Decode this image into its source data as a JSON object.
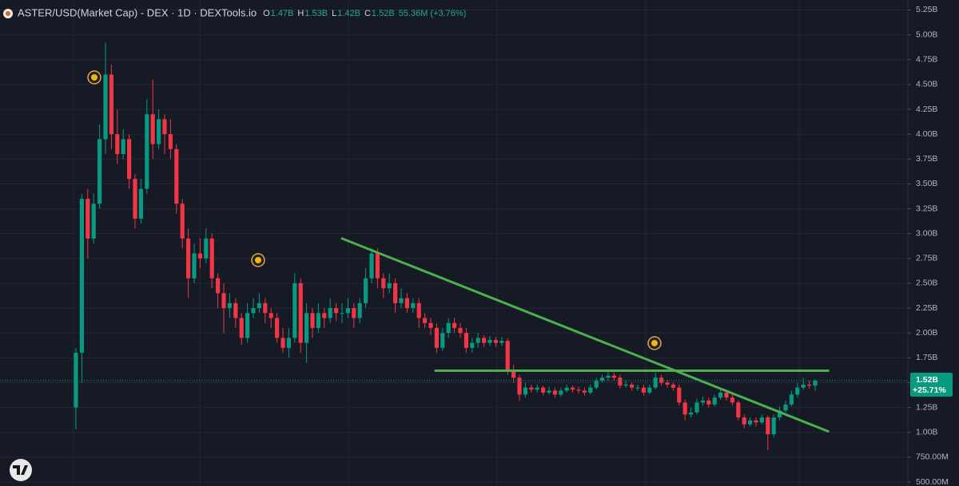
{
  "header": {
    "title": "ASTER/USD(Market Cap) - DEX · 1D · DEXTools.io",
    "ohlc": [
      {
        "label": "O",
        "value": "1.47B"
      },
      {
        "label": "H",
        "value": "1.53B"
      },
      {
        "label": "L",
        "value": "1.42B"
      },
      {
        "label": "C",
        "value": "1.52B"
      }
    ],
    "change": "55.36M (+3.76%)"
  },
  "price_label": {
    "price": "1.52B",
    "change": "+25.71%"
  },
  "chart_data": {
    "type": "candlestick",
    "up_color": "#089981",
    "down_color": "#f23645",
    "trendline_color": "#4caf50",
    "ylim": [
      0.46,
      5.35
    ],
    "yticks": [
      {
        "value": 5.25,
        "label": "5.25B"
      },
      {
        "value": 5.0,
        "label": "5.00B"
      },
      {
        "value": 4.75,
        "label": "4.75B"
      },
      {
        "value": 4.5,
        "label": "4.50B"
      },
      {
        "value": 4.25,
        "label": "4.25B"
      },
      {
        "value": 4.0,
        "label": "4.00B"
      },
      {
        "value": 3.75,
        "label": "3.75B"
      },
      {
        "value": 3.5,
        "label": "3.50B"
      },
      {
        "value": 3.25,
        "label": "3.25B"
      },
      {
        "value": 3.0,
        "label": "3.00B"
      },
      {
        "value": 2.75,
        "label": "2.75B"
      },
      {
        "value": 2.5,
        "label": "2.50B"
      },
      {
        "value": 2.25,
        "label": "2.25B"
      },
      {
        "value": 2.0,
        "label": "2.00B"
      },
      {
        "value": 1.75,
        "label": "1.75B"
      },
      {
        "value": 1.5,
        "label": "1.50B"
      },
      {
        "value": 1.25,
        "label": "1.25B"
      },
      {
        "value": 1.0,
        "label": "1.00B"
      },
      {
        "value": 0.75,
        "label": "750.00M"
      },
      {
        "value": 0.5,
        "label": "500.00M"
      }
    ],
    "grid": true,
    "open": [
      1.25,
      1.8,
      3.35,
      2.95,
      3.3,
      3.95,
      4.6,
      4.0,
      3.8,
      3.95,
      3.55,
      3.15,
      3.45,
      4.2,
      3.9,
      4.15,
      4.0,
      3.85,
      3.3,
      2.95,
      2.55,
      2.8,
      2.75,
      2.95,
      2.55,
      2.4,
      2.25,
      2.3,
      2.15,
      1.95,
      2.2,
      2.25,
      2.3,
      2.2,
      2.15,
      1.95,
      1.85,
      1.95,
      2.5,
      1.9,
      2.2,
      2.05,
      2.2,
      2.15,
      2.25,
      2.2,
      2.2,
      2.25,
      2.15,
      2.3,
      2.55,
      2.8,
      2.55,
      2.45,
      2.5,
      2.3,
      2.35,
      2.25,
      2.3,
      2.15,
      2.1,
      2.05,
      1.85,
      2.0,
      2.1,
      2.05,
      2.0,
      1.85,
      1.9,
      1.95,
      1.9,
      1.93,
      1.9,
      1.92,
      1.62,
      1.55,
      1.38,
      1.45,
      1.43,
      1.45,
      1.4,
      1.42,
      1.38,
      1.42,
      1.45,
      1.43,
      1.42,
      1.4,
      1.45,
      1.52,
      1.55,
      1.57,
      1.55,
      1.47,
      1.48,
      1.45,
      1.45,
      1.4,
      1.45,
      1.55,
      1.5,
      1.48,
      1.45,
      1.3,
      1.18,
      1.2,
      1.3,
      1.32,
      1.28,
      1.35,
      1.4,
      1.35,
      1.3,
      1.15,
      1.08,
      1.12,
      1.1,
      1.15,
      0.98,
      1.15,
      1.22,
      1.28,
      1.38,
      1.45,
      1.48,
      1.47
    ],
    "high": [
      1.85,
      3.4,
      3.45,
      3.4,
      4.1,
      4.92,
      4.7,
      4.25,
      4.05,
      4.0,
      3.6,
      3.55,
      4.35,
      4.55,
      4.25,
      4.2,
      4.15,
      3.9,
      3.35,
      3.05,
      2.9,
      2.95,
      3.05,
      3.0,
      2.6,
      2.5,
      2.4,
      2.35,
      2.2,
      2.3,
      2.35,
      2.4,
      2.35,
      2.25,
      2.2,
      2.05,
      2.05,
      2.6,
      2.55,
      2.3,
      2.25,
      2.3,
      2.25,
      2.35,
      2.3,
      2.3,
      2.35,
      2.3,
      2.35,
      2.65,
      2.85,
      2.85,
      2.6,
      2.6,
      2.55,
      2.45,
      2.4,
      2.35,
      2.35,
      2.2,
      2.15,
      2.1,
      2.05,
      2.15,
      2.15,
      2.1,
      2.05,
      1.95,
      2.0,
      1.98,
      1.97,
      1.96,
      1.96,
      1.95,
      1.68,
      1.58,
      1.5,
      1.48,
      1.48,
      1.47,
      1.46,
      1.45,
      1.45,
      1.48,
      1.47,
      1.46,
      1.45,
      1.48,
      1.55,
      1.58,
      1.61,
      1.6,
      1.58,
      1.52,
      1.5,
      1.48,
      1.48,
      1.48,
      1.6,
      1.58,
      1.53,
      1.5,
      1.48,
      1.33,
      1.25,
      1.34,
      1.36,
      1.35,
      1.38,
      1.43,
      1.42,
      1.38,
      1.32,
      1.18,
      1.15,
      1.15,
      1.18,
      1.17,
      1.18,
      1.26,
      1.32,
      1.42,
      1.5,
      1.55,
      1.52,
      1.53
    ],
    "low": [
      1.03,
      1.5,
      2.75,
      2.9,
      3.25,
      3.8,
      3.85,
      3.7,
      3.75,
      3.45,
      3.05,
      3.1,
      3.4,
      3.75,
      3.85,
      3.8,
      3.75,
      3.2,
      2.85,
      2.35,
      2.5,
      2.65,
      2.7,
      2.45,
      2.25,
      2.0,
      2.15,
      2.05,
      1.88,
      1.9,
      2.15,
      2.2,
      2.1,
      2.05,
      1.9,
      1.8,
      1.75,
      1.9,
      1.8,
      1.7,
      1.95,
      2.0,
      2.05,
      2.1,
      2.12,
      2.1,
      2.15,
      2.05,
      2.1,
      2.25,
      2.5,
      2.45,
      2.35,
      2.4,
      2.2,
      2.25,
      2.2,
      2.2,
      2.05,
      2.05,
      1.98,
      1.8,
      1.82,
      1.95,
      2.0,
      1.95,
      1.8,
      1.8,
      1.85,
      1.86,
      1.87,
      1.86,
      1.87,
      1.58,
      1.5,
      1.32,
      1.35,
      1.4,
      1.4,
      1.37,
      1.38,
      1.35,
      1.36,
      1.4,
      1.4,
      1.39,
      1.37,
      1.38,
      1.43,
      1.5,
      1.52,
      1.52,
      1.44,
      1.45,
      1.42,
      1.42,
      1.37,
      1.38,
      1.43,
      1.47,
      1.45,
      1.42,
      1.27,
      1.12,
      1.15,
      1.18,
      1.27,
      1.25,
      1.26,
      1.33,
      1.32,
      1.27,
      1.12,
      1.04,
      1.06,
      1.06,
      1.08,
      0.82,
      0.95,
      1.12,
      1.2,
      1.26,
      1.35,
      1.43,
      1.44,
      1.42
    ],
    "close": [
      1.8,
      3.35,
      2.95,
      3.3,
      3.95,
      4.6,
      4.0,
      3.8,
      3.95,
      3.55,
      3.15,
      3.45,
      4.2,
      3.9,
      4.15,
      4.0,
      3.85,
      3.3,
      2.95,
      2.55,
      2.8,
      2.75,
      2.95,
      2.55,
      2.4,
      2.25,
      2.3,
      2.15,
      1.95,
      2.2,
      2.25,
      2.3,
      2.2,
      2.15,
      1.95,
      1.85,
      1.95,
      2.5,
      1.9,
      2.2,
      2.05,
      2.2,
      2.15,
      2.25,
      2.2,
      2.2,
      2.25,
      2.15,
      2.3,
      2.55,
      2.8,
      2.55,
      2.45,
      2.5,
      2.3,
      2.35,
      2.25,
      2.3,
      2.15,
      2.1,
      2.05,
      1.85,
      2.0,
      2.1,
      2.05,
      2.0,
      1.85,
      1.9,
      1.95,
      1.9,
      1.93,
      1.9,
      1.92,
      1.62,
      1.55,
      1.38,
      1.45,
      1.43,
      1.45,
      1.4,
      1.42,
      1.38,
      1.42,
      1.45,
      1.43,
      1.42,
      1.4,
      1.45,
      1.52,
      1.55,
      1.57,
      1.55,
      1.47,
      1.48,
      1.45,
      1.45,
      1.4,
      1.45,
      1.55,
      1.5,
      1.48,
      1.45,
      1.3,
      1.18,
      1.2,
      1.3,
      1.32,
      1.28,
      1.35,
      1.4,
      1.35,
      1.3,
      1.15,
      1.08,
      1.12,
      1.1,
      1.15,
      0.98,
      1.15,
      1.22,
      1.28,
      1.38,
      1.45,
      1.48,
      1.47,
      1.52
    ],
    "trendlines": [
      {
        "x": [
          45.0,
          127.2
        ],
        "y": [
          2.95,
          1.01
        ]
      },
      {
        "x": [
          60.8,
          127.2
        ],
        "y": [
          1.62,
          1.62
        ]
      }
    ]
  }
}
